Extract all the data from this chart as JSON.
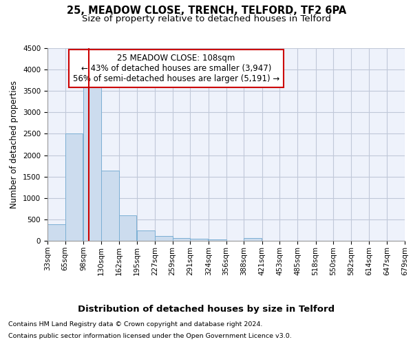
{
  "title1": "25, MEADOW CLOSE, TRENCH, TELFORD, TF2 6PA",
  "title2": "Size of property relative to detached houses in Telford",
  "xlabel": "Distribution of detached houses by size in Telford",
  "ylabel": "Number of detached properties",
  "footer1": "Contains HM Land Registry data © Crown copyright and database right 2024.",
  "footer2": "Contains public sector information licensed under the Open Government Licence v3.0.",
  "annotation_title": "25 MEADOW CLOSE: 108sqm",
  "annotation_line1": "← 43% of detached houses are smaller (3,947)",
  "annotation_line2": "56% of semi-detached houses are larger (5,191) →",
  "property_size": 108,
  "bar_color": "#ccdcee",
  "bar_edge_color": "#7bafd4",
  "vline_color": "#cc0000",
  "annotation_box_color": "#cc0000",
  "background_color": "#eef2fb",
  "grid_color": "#c0c8d8",
  "bins": [
    33,
    65,
    98,
    130,
    162,
    195,
    227,
    259,
    291,
    324,
    356,
    388,
    421,
    453,
    485,
    518,
    550,
    582,
    614,
    647,
    679
  ],
  "counts": [
    380,
    2500,
    3750,
    1640,
    590,
    240,
    110,
    70,
    55,
    40,
    0,
    60,
    0,
    0,
    0,
    0,
    0,
    0,
    0,
    0
  ],
  "ylim": [
    0,
    4500
  ],
  "yticks": [
    0,
    500,
    1000,
    1500,
    2000,
    2500,
    3000,
    3500,
    4000,
    4500
  ],
  "title1_fontsize": 10.5,
  "title2_fontsize": 9.5,
  "xlabel_fontsize": 9.5,
  "ylabel_fontsize": 8.5,
  "tick_fontsize": 7.5,
  "annotation_fontsize": 8.5,
  "footer_fontsize": 6.8
}
